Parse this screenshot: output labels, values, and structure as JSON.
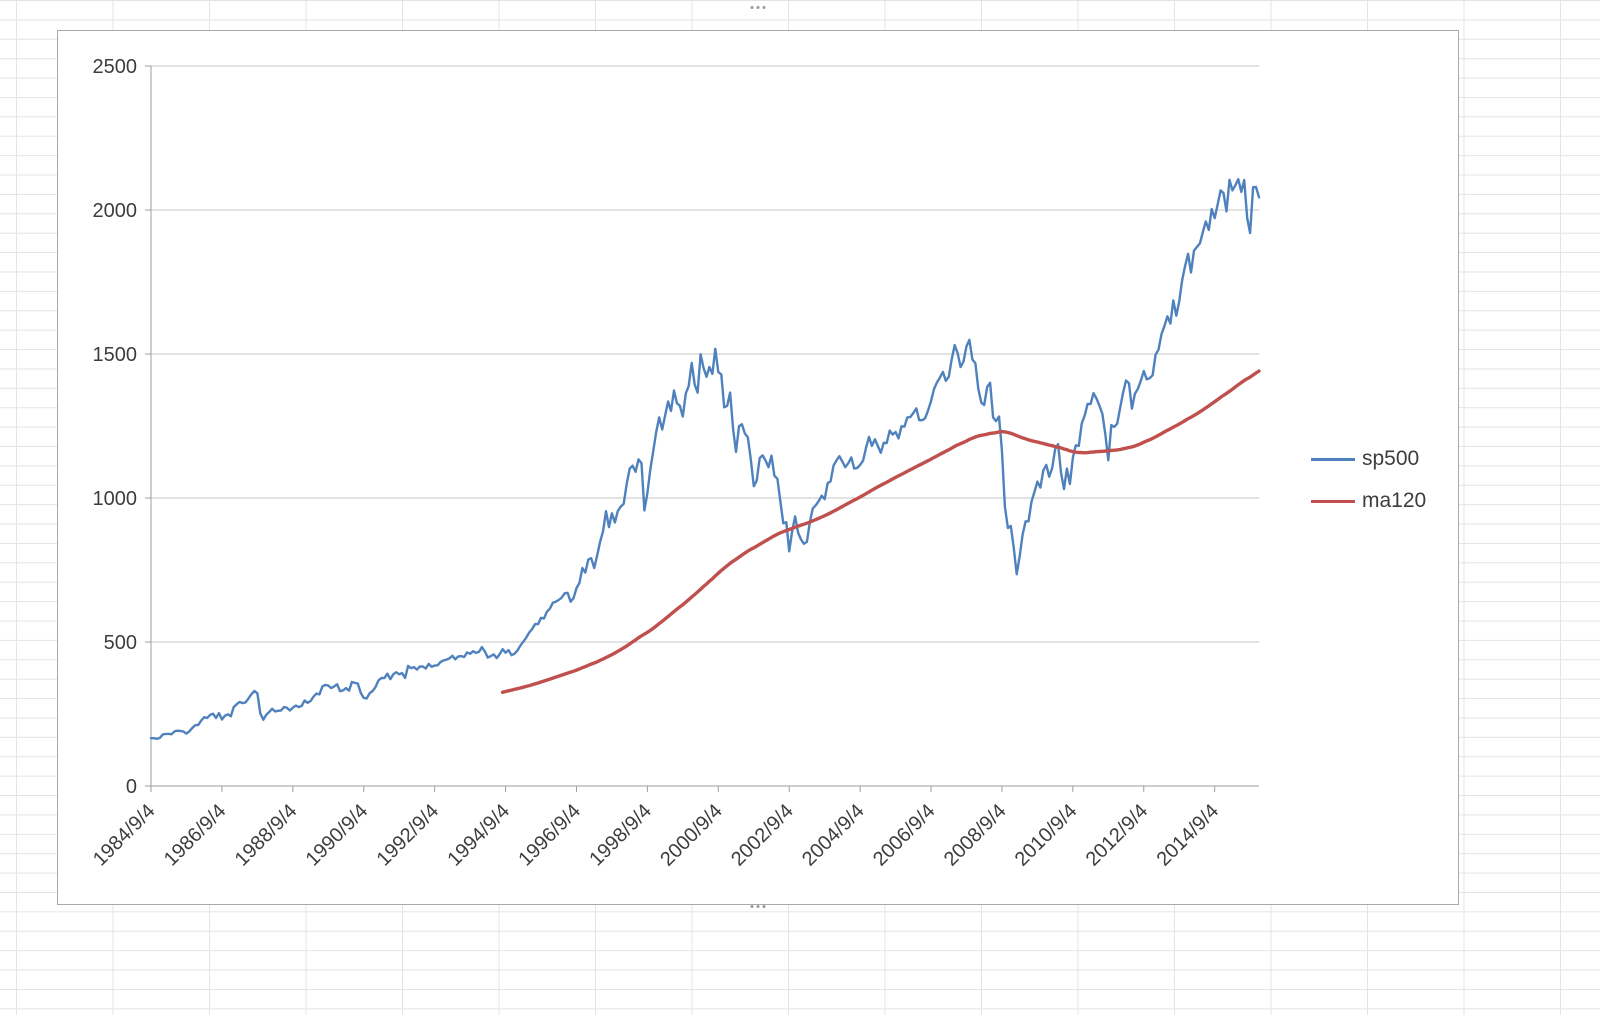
{
  "chart_data": {
    "type": "line",
    "title": "",
    "xlabel": "",
    "ylabel": "",
    "ylim": [
      0,
      2500
    ],
    "y_ticks": [
      0,
      500,
      1000,
      1500,
      2000,
      2500
    ],
    "grid": "horizontal",
    "legend_position": "right",
    "x_start": "1984/9/4",
    "x_frequency": "monthly",
    "x_tick_interval_months": 24,
    "x_tick_labels": [
      "1984/9/4",
      "1986/9/4",
      "1988/9/4",
      "1990/9/4",
      "1992/9/4",
      "1994/9/4",
      "1996/9/4",
      "1998/9/4",
      "2000/9/4",
      "2002/9/4",
      "2004/9/4",
      "2006/9/4",
      "2008/9/4",
      "2010/9/4",
      "2012/9/4",
      "2014/9/4"
    ],
    "series": [
      {
        "name": "sp500",
        "color": "#4F81BD",
        "values": [
          166,
          166,
          164,
          167,
          179,
          181,
          181,
          180,
          190,
          192,
          191,
          189,
          182,
          190,
          202,
          211,
          212,
          227,
          239,
          236,
          247,
          251,
          236,
          253,
          231,
          244,
          249,
          242,
          274,
          284,
          292,
          288,
          290,
          304,
          319,
          330,
          322,
          252,
          230,
          247,
          257,
          268,
          259,
          261,
          262,
          274,
          272,
          262,
          272,
          279,
          274,
          278,
          297,
          289,
          295,
          310,
          321,
          318,
          346,
          351,
          349,
          340,
          346,
          353,
          329,
          332,
          340,
          331,
          361,
          358,
          356,
          323,
          306,
          304,
          322,
          330,
          344,
          367,
          375,
          375,
          390,
          371,
          388,
          395,
          388,
          392,
          375,
          417,
          409,
          413,
          404,
          415,
          415,
          408,
          424,
          414,
          418,
          419,
          431,
          436,
          439,
          443,
          452,
          440,
          450,
          451,
          448,
          464,
          459,
          468,
          462,
          466,
          482,
          467,
          446,
          451,
          457,
          444,
          458,
          475,
          463,
          472,
          454,
          459,
          470,
          487,
          501,
          515,
          533,
          545,
          562,
          562,
          584,
          582,
          605,
          616,
          636,
          640,
          646,
          654,
          669,
          671,
          640,
          652,
          687,
          705,
          757,
          741,
          786,
          791,
          757,
          801,
          848,
          885,
          954,
          899,
          947,
          915,
          955,
          970,
          980,
          1049,
          1102,
          1112,
          1091,
          1134,
          1121,
          957,
          1017,
          1099,
          1164,
          1229,
          1280,
          1238,
          1286,
          1335,
          1302,
          1373,
          1329,
          1320,
          1283,
          1363,
          1389,
          1469,
          1394,
          1366,
          1499,
          1452,
          1421,
          1455,
          1431,
          1518,
          1437,
          1429,
          1315,
          1320,
          1366,
          1240,
          1160,
          1249,
          1256,
          1224,
          1211,
          1134,
          1041,
          1060,
          1139,
          1148,
          1130,
          1107,
          1147,
          1077,
          1067,
          990,
          912,
          916,
          815,
          886,
          936,
          880,
          856,
          841,
          848,
          917,
          964,
          975,
          990,
          1008,
          996,
          1051,
          1058,
          1112,
          1131,
          1145,
          1126,
          1107,
          1121,
          1141,
          1102,
          1104,
          1115,
          1130,
          1174,
          1212,
          1181,
          1204,
          1181,
          1157,
          1192,
          1191,
          1234,
          1220,
          1229,
          1207,
          1249,
          1248,
          1280,
          1281,
          1295,
          1311,
          1270,
          1270,
          1277,
          1304,
          1336,
          1378,
          1401,
          1418,
          1438,
          1407,
          1421,
          1482,
          1531,
          1503,
          1455,
          1474,
          1527,
          1549,
          1481,
          1468,
          1379,
          1331,
          1323,
          1386,
          1400,
          1280,
          1267,
          1283,
          1166,
          969,
          896,
          903,
          826,
          735,
          798,
          873,
          919,
          919,
          987,
          1021,
          1057,
          1036,
          1096,
          1115,
          1074,
          1104,
          1169,
          1187,
          1089,
          1031,
          1102,
          1049,
          1141,
          1183,
          1181,
          1258,
          1286,
          1327,
          1326,
          1364,
          1345,
          1321,
          1292,
          1219,
          1131,
          1253,
          1247,
          1258,
          1312,
          1366,
          1408,
          1398,
          1310,
          1362,
          1379,
          1407,
          1441,
          1412,
          1416,
          1426,
          1498,
          1515,
          1569,
          1598,
          1631,
          1606,
          1686,
          1633,
          1682,
          1757,
          1806,
          1848,
          1783,
          1859,
          1872,
          1884,
          1924,
          1960,
          1931,
          2003,
          1972,
          2018,
          2068,
          2059,
          1995,
          2105,
          2068,
          2086,
          2107,
          2063,
          2104,
          1972,
          1920,
          2079,
          2080,
          2044
        ]
      },
      {
        "name": "ma120",
        "color": "#C0504D",
        "derived": "120-month moving average of sp500",
        "window": 120
      }
    ]
  },
  "colors": {
    "gridline": "#c6c6c6",
    "axis": "#9d9d9d",
    "axis_text": "#3d3d3d"
  }
}
